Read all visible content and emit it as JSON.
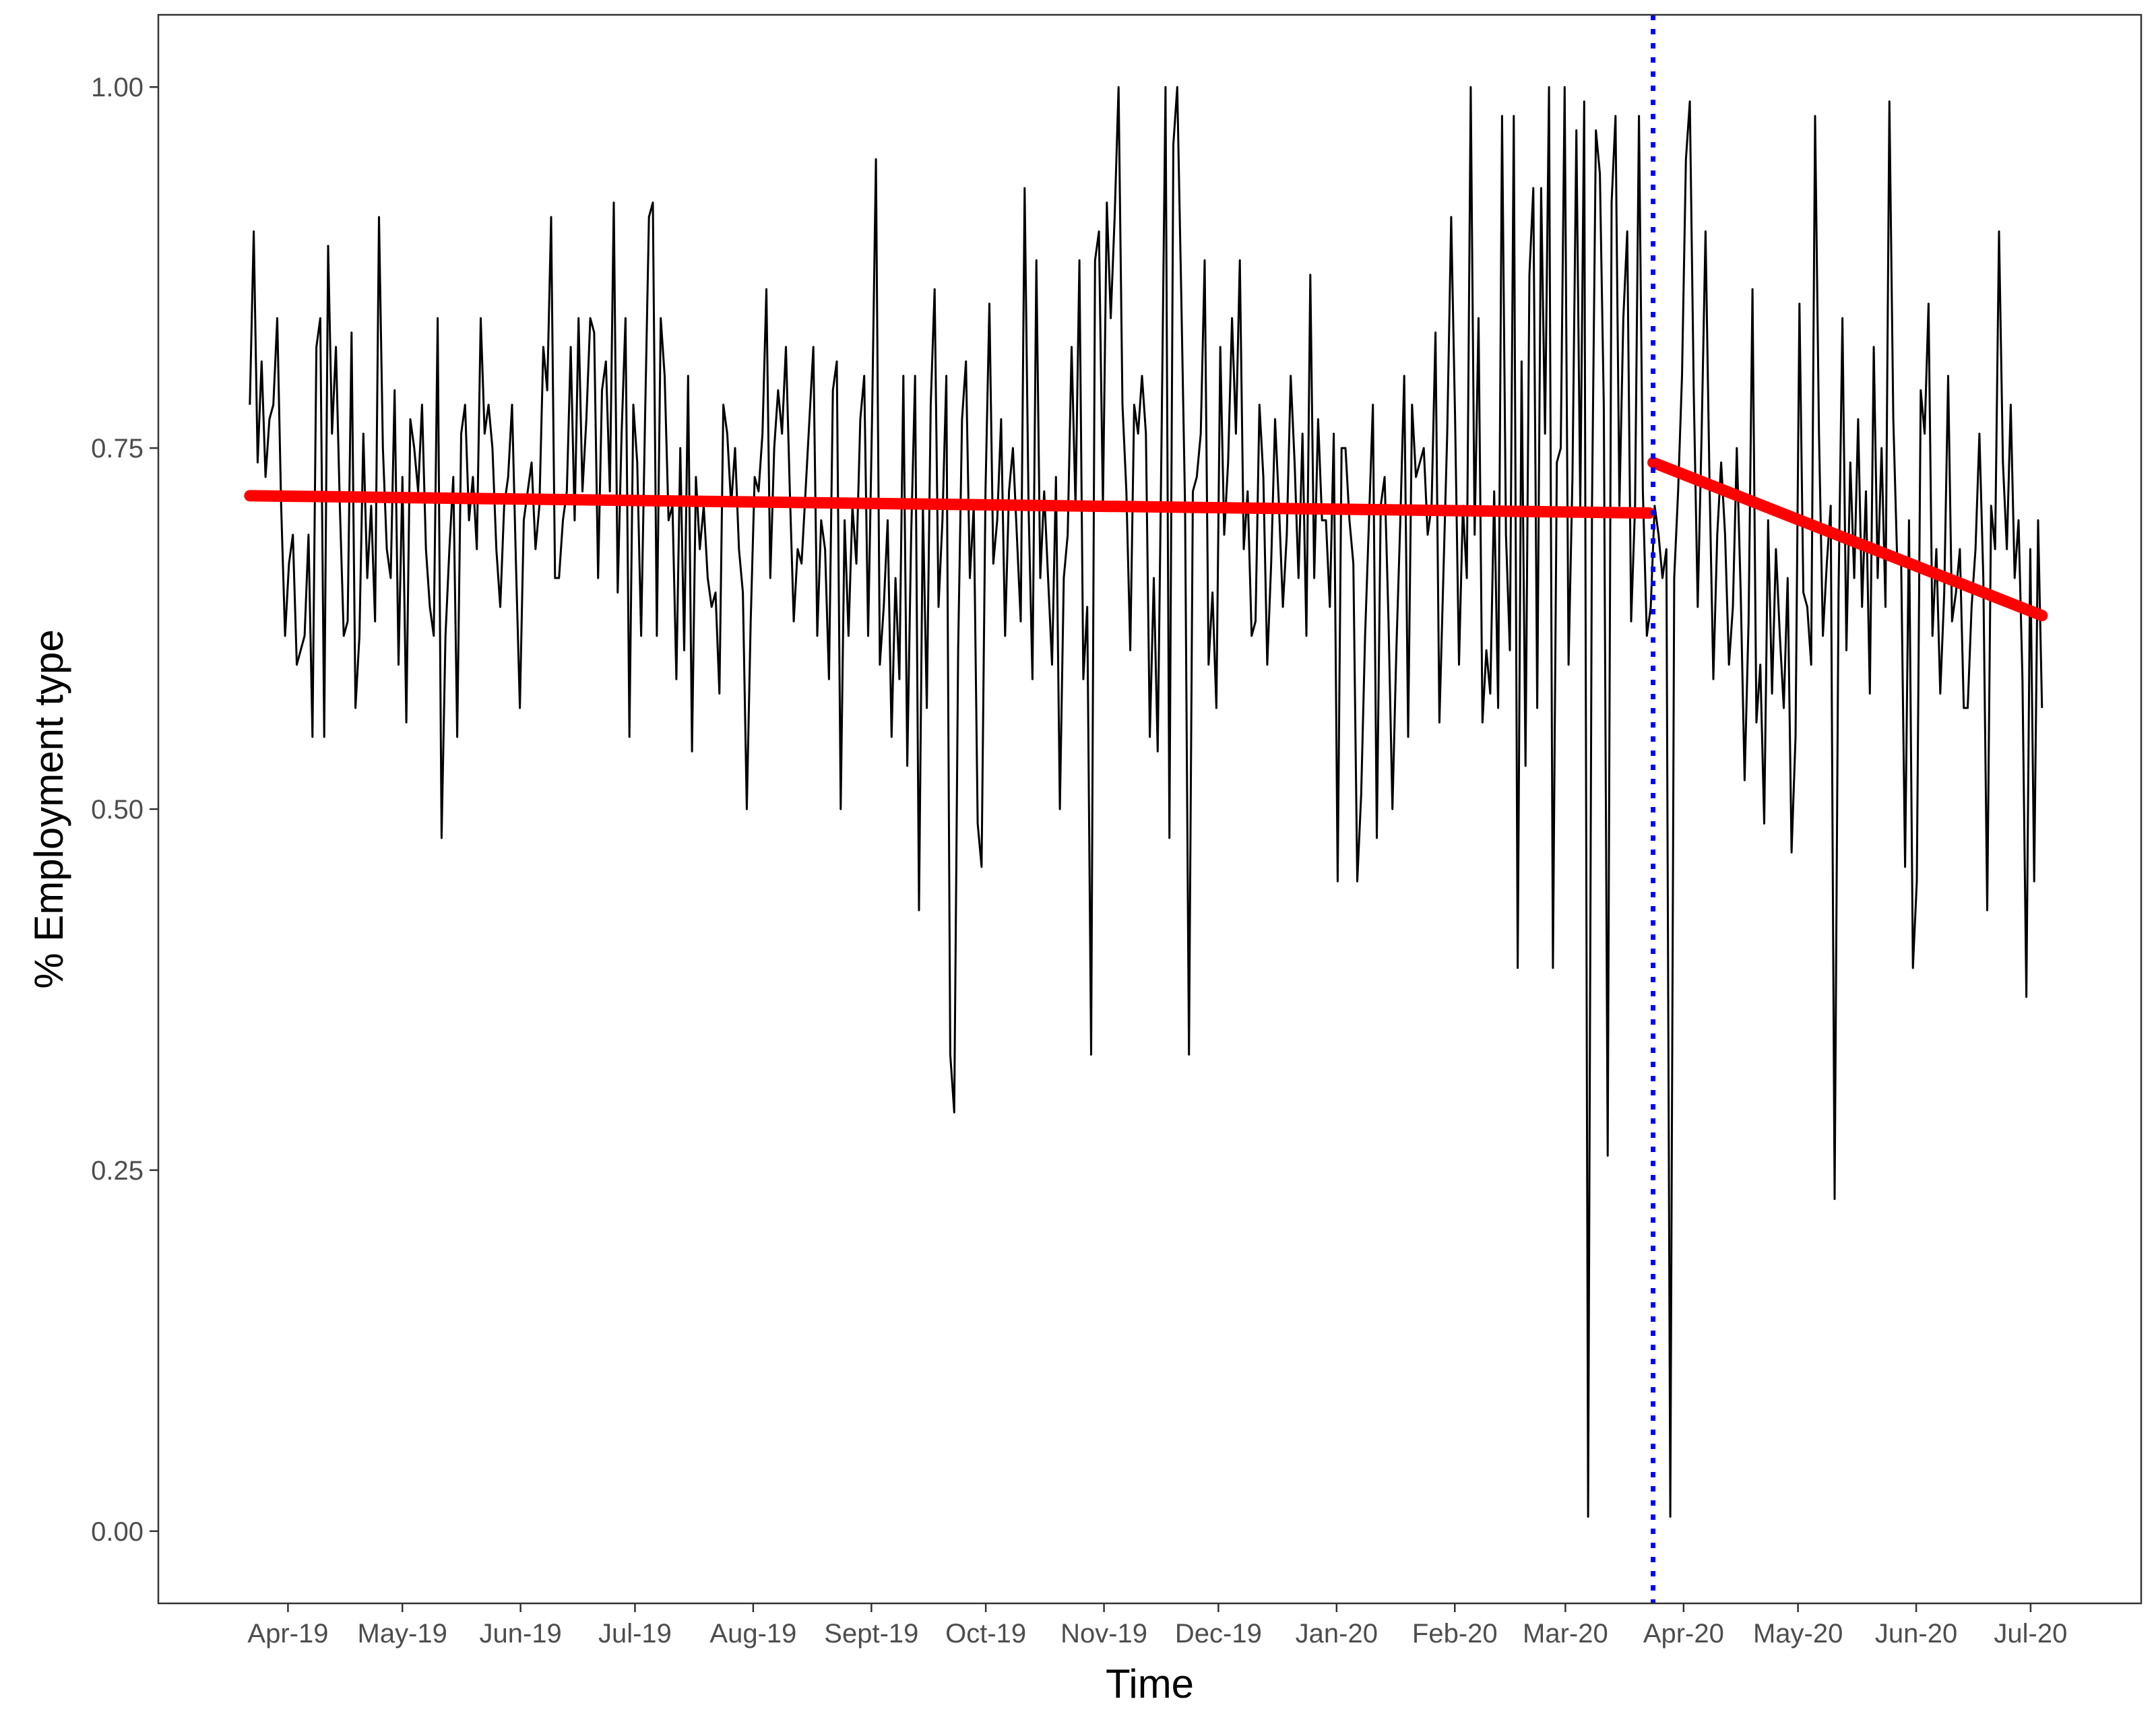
{
  "chart_data": {
    "type": "line",
    "xlabel": "Time",
    "ylabel": "% Employment type",
    "x_axis": {
      "tick_labels": [
        "Apr-19",
        "May-19",
        "Jun-19",
        "Jul-19",
        "Aug-19",
        "Sept-19",
        "Oct-19",
        "Nov-19",
        "Dec-19",
        "Jan-20",
        "Feb-20",
        "Mar-20",
        "Apr-20",
        "May-20",
        "Jun-20",
        "Jul-20"
      ],
      "tick_dates": [
        "2019-04-01",
        "2019-05-01",
        "2019-06-01",
        "2019-07-01",
        "2019-08-01",
        "2019-09-01",
        "2019-10-01",
        "2019-11-01",
        "2019-12-01",
        "2020-01-01",
        "2020-02-01",
        "2020-03-01",
        "2020-04-01",
        "2020-05-01",
        "2020-06-01",
        "2020-07-01"
      ],
      "range": [
        "2019-02-26",
        "2020-07-30"
      ]
    },
    "y_axis": {
      "tick_labels": [
        "0.00",
        "0.25",
        "0.50",
        "0.75",
        "1.00"
      ],
      "tick_values": [
        0,
        0.25,
        0.5,
        0.75,
        1.0
      ],
      "range": [
        -0.05,
        1.05
      ]
    },
    "grid": false,
    "legend": "none",
    "colors": {
      "daily_series": "#000000",
      "trend": "#ff0000",
      "intervention": "#0000ff",
      "axis_text": "#4d4d4d",
      "panel_border": "#333333"
    },
    "series": [
      {
        "type": "line",
        "x_start": "2019-03-22",
        "x_end": "2020-07-04",
        "y": [
          0.78,
          0.9,
          0.74,
          0.81,
          0.73,
          0.77,
          0.78,
          0.84,
          0.71,
          0.62,
          0.67,
          0.69,
          0.6,
          0.61,
          0.62,
          0.69,
          0.55,
          0.82,
          0.84,
          0.55,
          0.89,
          0.76,
          0.82,
          0.71,
          0.62,
          0.63,
          0.83,
          0.57,
          0.62,
          0.76,
          0.66,
          0.71,
          0.63,
          0.91,
          0.75,
          0.68,
          0.66,
          0.79,
          0.6,
          0.73,
          0.56,
          0.77,
          0.75,
          0.72,
          0.78,
          0.68,
          0.64,
          0.62,
          0.84,
          0.48,
          0.62,
          0.68,
          0.73,
          0.55,
          0.76,
          0.78,
          0.7,
          0.73,
          0.68,
          0.84,
          0.76,
          0.78,
          0.75,
          0.68,
          0.64,
          0.71,
          0.73,
          0.78,
          0.67,
          0.57,
          0.7,
          0.72,
          0.74,
          0.68,
          0.71,
          0.82,
          0.79,
          0.91,
          0.66,
          0.66,
          0.7,
          0.72,
          0.82,
          0.7,
          0.84,
          0.72,
          0.77,
          0.84,
          0.83,
          0.66,
          0.79,
          0.81,
          0.72,
          0.92,
          0.65,
          0.76,
          0.84,
          0.55,
          0.78,
          0.74,
          0.62,
          0.77,
          0.91,
          0.92,
          0.62,
          0.84,
          0.8,
          0.7,
          0.71,
          0.59,
          0.75,
          0.61,
          0.8,
          0.54,
          0.73,
          0.68,
          0.71,
          0.66,
          0.64,
          0.65,
          0.58,
          0.78,
          0.76,
          0.71,
          0.75,
          0.68,
          0.65,
          0.5,
          0.63,
          0.73,
          0.72,
          0.76,
          0.86,
          0.66,
          0.75,
          0.79,
          0.76,
          0.82,
          0.72,
          0.63,
          0.68,
          0.67,
          0.72,
          0.77,
          0.82,
          0.62,
          0.7,
          0.68,
          0.59,
          0.79,
          0.81,
          0.5,
          0.7,
          0.62,
          0.71,
          0.67,
          0.77,
          0.8,
          0.62,
          0.77,
          0.95,
          0.6,
          0.64,
          0.7,
          0.55,
          0.66,
          0.59,
          0.8,
          0.53,
          0.69,
          0.8,
          0.43,
          0.71,
          0.57,
          0.78,
          0.86,
          0.64,
          0.7,
          0.8,
          0.33,
          0.29,
          0.61,
          0.77,
          0.81,
          0.66,
          0.71,
          0.49,
          0.46,
          0.72,
          0.85,
          0.67,
          0.7,
          0.77,
          0.62,
          0.72,
          0.75,
          0.69,
          0.63,
          0.93,
          0.71,
          0.59,
          0.88,
          0.66,
          0.72,
          0.66,
          0.6,
          0.73,
          0.5,
          0.66,
          0.69,
          0.82,
          0.71,
          0.88,
          0.59,
          0.64,
          0.33,
          0.88,
          0.9,
          0.71,
          0.92,
          0.84,
          0.91,
          1.0,
          0.78,
          0.72,
          0.61,
          0.78,
          0.76,
          0.8,
          0.76,
          0.55,
          0.66,
          0.54,
          0.76,
          1.0,
          0.48,
          0.96,
          1.0,
          0.86,
          0.71,
          0.33,
          0.72,
          0.73,
          0.76,
          0.88,
          0.6,
          0.65,
          0.57,
          0.82,
          0.69,
          0.74,
          0.84,
          0.76,
          0.88,
          0.68,
          0.72,
          0.62,
          0.63,
          0.78,
          0.73,
          0.6,
          0.67,
          0.77,
          0.71,
          0.64,
          0.69,
          0.8,
          0.74,
          0.66,
          0.76,
          0.62,
          0.87,
          0.66,
          0.77,
          0.7,
          0.7,
          0.64,
          0.76,
          0.45,
          0.75,
          0.75,
          0.7,
          0.67,
          0.45,
          0.51,
          0.62,
          0.7,
          0.78,
          0.48,
          0.71,
          0.73,
          0.63,
          0.5,
          0.61,
          0.7,
          0.8,
          0.55,
          0.78,
          0.73,
          0.74,
          0.75,
          0.69,
          0.71,
          0.83,
          0.56,
          0.66,
          0.76,
          0.91,
          0.77,
          0.6,
          0.71,
          0.66,
          1.0,
          0.69,
          0.84,
          0.56,
          0.61,
          0.58,
          0.72,
          0.57,
          0.98,
          0.69,
          0.61,
          0.98,
          0.39,
          0.81,
          0.53,
          0.87,
          0.93,
          0.57,
          0.93,
          0.76,
          1.0,
          0.39,
          0.74,
          0.75,
          1.0,
          0.6,
          0.73,
          0.97,
          0.71,
          0.99,
          0.01,
          0.71,
          0.97,
          0.94,
          0.78,
          0.26,
          0.92,
          0.98,
          0.71,
          0.84,
          0.9,
          0.63,
          0.71,
          0.98,
          0.72,
          0.62,
          0.64,
          0.71,
          0.69,
          0.66,
          0.68,
          0.01,
          0.66,
          0.72,
          0.8,
          0.95,
          0.99,
          0.79,
          0.64,
          0.76,
          0.9,
          0.73,
          0.59,
          0.69,
          0.74,
          0.69,
          0.6,
          0.64,
          0.75,
          0.65,
          0.52,
          0.63,
          0.86,
          0.56,
          0.6,
          0.49,
          0.7,
          0.58,
          0.68,
          0.62,
          0.57,
          0.66,
          0.47,
          0.55,
          0.85,
          0.65,
          0.64,
          0.6,
          0.98,
          0.76,
          0.62,
          0.67,
          0.71,
          0.23,
          0.65,
          0.84,
          0.61,
          0.74,
          0.66,
          0.77,
          0.64,
          0.72,
          0.58,
          0.82,
          0.66,
          0.75,
          0.64,
          0.99,
          0.77,
          0.67,
          0.67,
          0.46,
          0.7,
          0.39,
          0.45,
          0.79,
          0.76,
          0.85,
          0.62,
          0.68,
          0.58,
          0.65,
          0.8,
          0.63,
          0.65,
          0.68,
          0.57,
          0.57,
          0.64,
          0.68,
          0.76,
          0.66,
          0.43,
          0.71,
          0.68,
          0.9,
          0.74,
          0.68,
          0.78,
          0.66,
          0.7,
          0.59,
          0.37,
          0.68,
          0.45,
          0.7,
          0.57
        ]
      },
      {
        "type": "trend",
        "segments": [
          {
            "x": [
              "2019-03-22",
              "2020-03-23"
            ],
            "y": [
              0.717,
              0.705
            ]
          },
          {
            "x": [
              "2020-03-24",
              "2020-07-04"
            ],
            "y": [
              0.74,
              0.634
            ]
          }
        ]
      }
    ],
    "reference_line": {
      "orientation": "vertical",
      "x": "2020-03-24",
      "style": "dotted"
    }
  }
}
